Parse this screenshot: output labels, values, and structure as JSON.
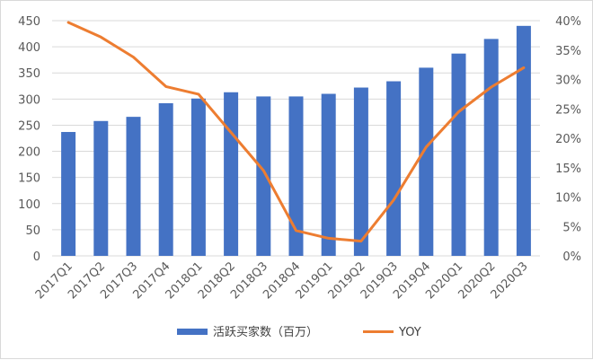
{
  "chart_data": {
    "type": "bar",
    "categories": [
      "2017Q1",
      "2017Q2",
      "2017Q3",
      "2017Q4",
      "2018Q1",
      "2018Q2",
      "2018Q3",
      "2018Q4",
      "2019Q1",
      "2019Q2",
      "2019Q3",
      "2019Q4",
      "2020Q1",
      "2020Q2",
      "2020Q3"
    ],
    "series": [
      {
        "name": "活跃买家数（百万）",
        "type": "bar",
        "axis": "left",
        "color": "#4472c4",
        "values": [
          237,
          258,
          266,
          292,
          301,
          313,
          305,
          305,
          310,
          322,
          334,
          360,
          387,
          415,
          440
        ]
      },
      {
        "name": "YOY",
        "type": "line",
        "axis": "right",
        "color": "#ed7d31",
        "values": [
          0.397,
          0.372,
          0.338,
          0.288,
          0.275,
          0.21,
          0.145,
          0.043,
          0.03,
          0.025,
          0.095,
          0.185,
          0.245,
          0.287,
          0.32
        ]
      }
    ],
    "y_left": {
      "ylim": [
        0,
        450
      ],
      "ticks": [
        "0",
        "50",
        "100",
        "150",
        "200",
        "250",
        "300",
        "350",
        "400",
        "450"
      ]
    },
    "y_right": {
      "ylim": [
        0,
        0.4
      ],
      "ticks": [
        "0%",
        "5%",
        "10%",
        "15%",
        "20%",
        "25%",
        "30%",
        "35%",
        "40%"
      ]
    },
    "grid": true,
    "legend_position": "bottom"
  }
}
